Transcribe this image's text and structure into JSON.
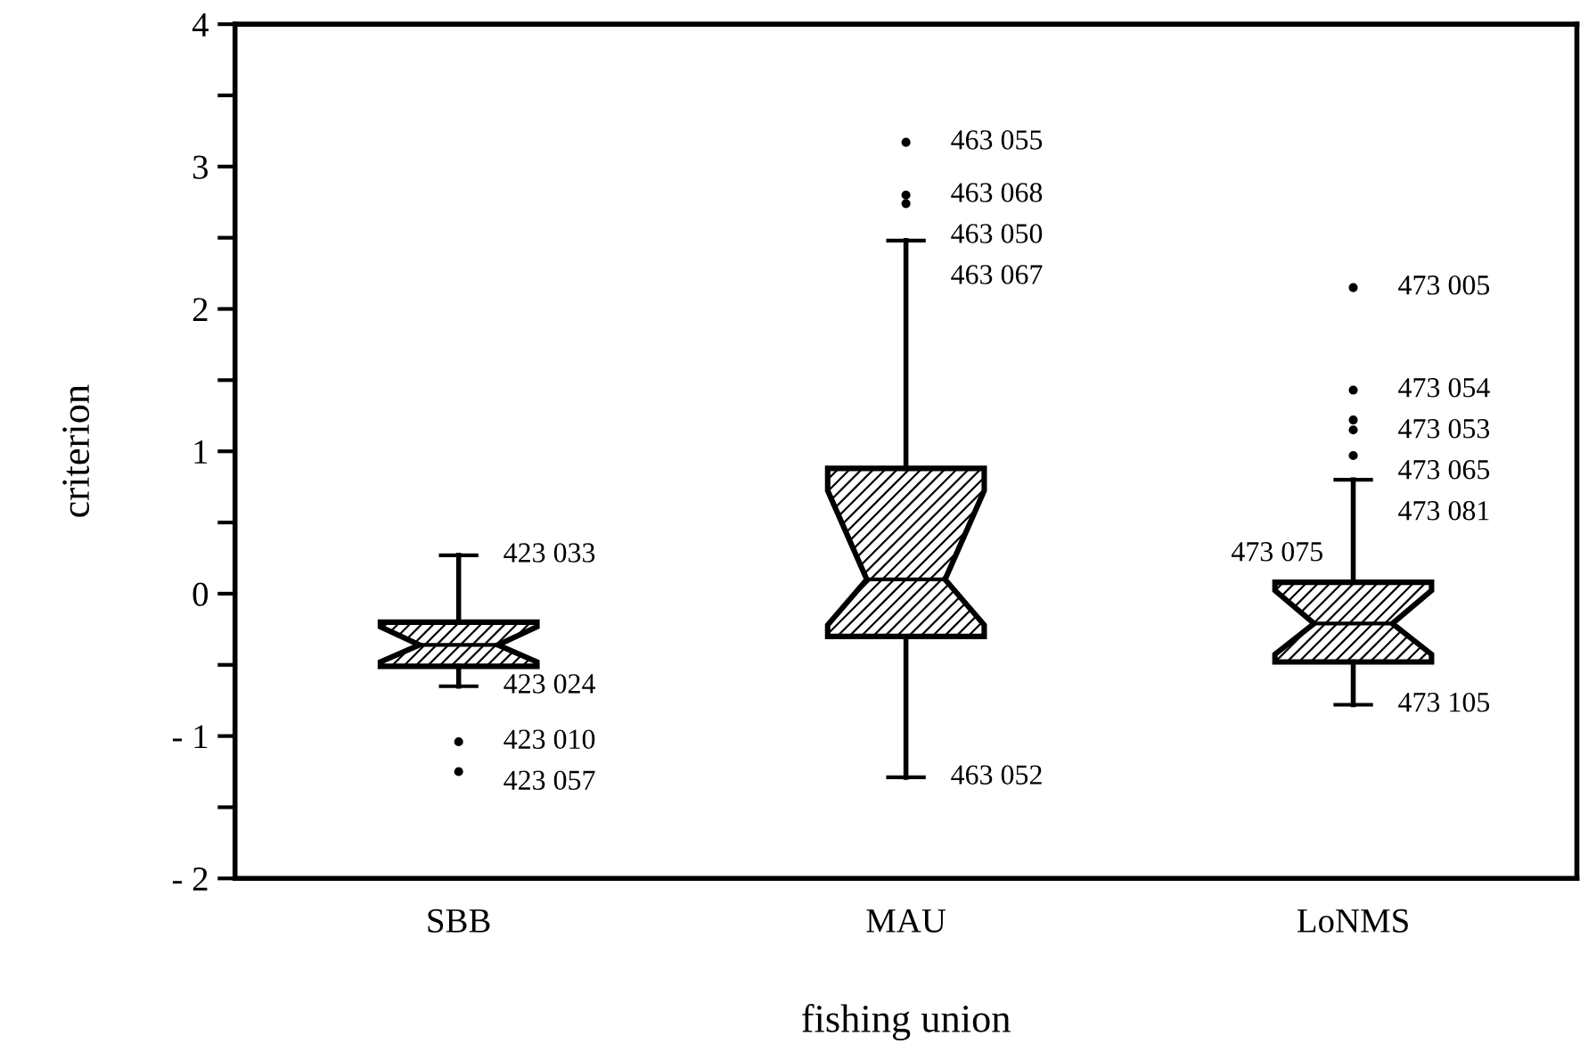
{
  "chart_data": {
    "type": "box",
    "xlabel": "fishing union",
    "ylabel": "criterion",
    "categories": [
      "SBB",
      "MAU",
      "LoNMS"
    ],
    "color": "#000000",
    "boxes": [
      {
        "low": -0.65,
        "q1": -0.51,
        "median": -0.36,
        "q3": -0.2,
        "high": 0.27,
        "outliers": [
          -1.04,
          -1.25
        ]
      },
      {
        "low": -1.29,
        "q1": -0.3,
        "median": 0.1,
        "q3": 0.88,
        "high": 2.48,
        "outliers": [
          3.17,
          2.8,
          2.74
        ]
      },
      {
        "low": -0.78,
        "q1": -0.48,
        "median": -0.21,
        "q3": 0.08,
        "high": 0.8,
        "outliers": [
          2.15,
          1.43,
          1.22,
          1.15,
          0.97
        ]
      }
    ],
    "ylim": [
      -2,
      4
    ],
    "yticks": [
      {
        "value": -2,
        "label": "- 2"
      },
      {
        "value": -1.5,
        "label": null
      },
      {
        "value": -1,
        "label": "- 1"
      },
      {
        "value": -0.5,
        "label": null
      },
      0,
      {
        "value": 0.5,
        "label": null
      },
      1,
      {
        "value": 1.5,
        "label": null
      },
      2,
      {
        "value": 2.5,
        "label": null
      },
      3,
      {
        "value": 3.5,
        "label": null
      },
      4
    ],
    "grid": false,
    "annotations": [
      {
        "text": "423 033",
        "x": "SBB",
        "y": 0.27
      },
      {
        "text": "423 024",
        "x": "SBB",
        "y": -0.65
      },
      "423 010",
      "423 057",
      "463 055",
      "463 068",
      "463 050",
      {
        "text": "463 067",
        "x": "MAU",
        "y": 2.48
      },
      {
        "text": "463 052",
        "x": "MAU",
        "y": -1.29
      },
      "473 005",
      "473 054",
      "473 053",
      "473 065",
      "473 081",
      {
        "text": "473 075",
        "x": "LoNMS",
        "y": 0.8
      },
      {
        "text": "473 105",
        "x": "LoNMS",
        "y": -0.78
      }
    ]
  }
}
